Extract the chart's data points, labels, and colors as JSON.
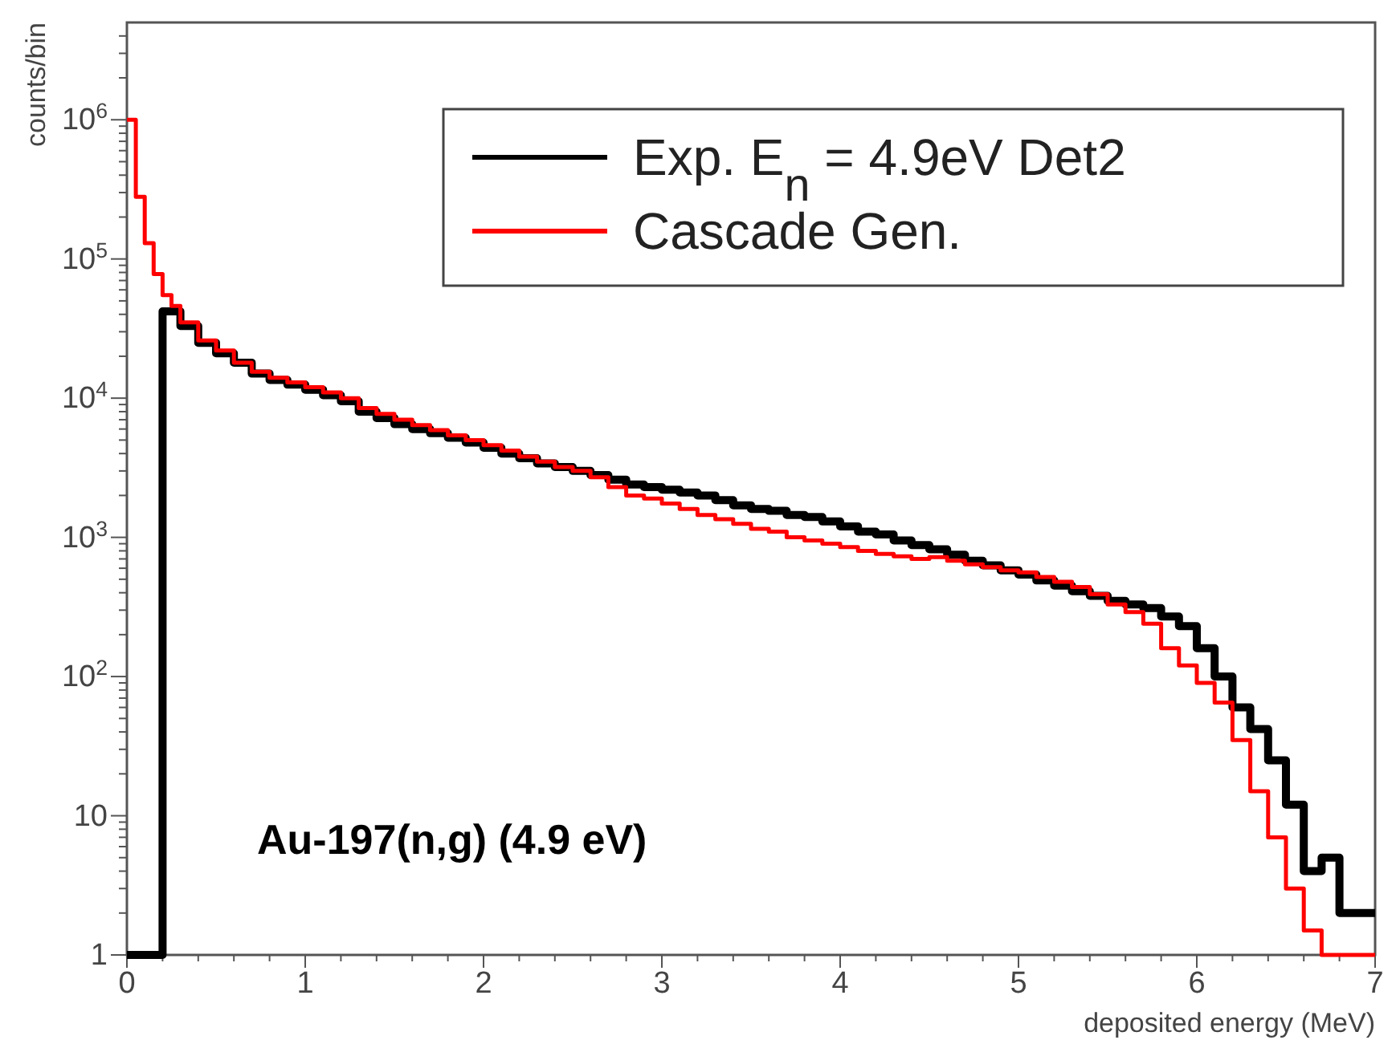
{
  "chart_data": {
    "type": "step",
    "xlabel": "deposited energy (MeV)",
    "ylabel": "counts/bin",
    "annotations": [
      "Au-197(n,g) (4.9 eV)"
    ],
    "log": "y",
    "grid": false,
    "legend": "top right",
    "line_style": "solid",
    "marker": "none",
    "xlim": [
      0,
      7
    ],
    "ylim": [
      1,
      5000000
    ],
    "xticks": [
      0,
      {
        "value": 0.2,
        "label": null
      },
      {
        "value": 0.4,
        "label": null
      },
      {
        "value": 0.6,
        "label": null
      },
      {
        "value": 0.8,
        "label": null
      },
      1,
      {
        "value": 1.2,
        "label": null
      },
      {
        "value": 1.4,
        "label": null
      },
      {
        "value": 1.6,
        "label": null
      },
      {
        "value": 1.8,
        "label": null
      },
      2,
      {
        "value": 2.2,
        "label": null
      },
      {
        "value": 2.4,
        "label": null
      },
      {
        "value": 2.6,
        "label": null
      },
      {
        "value": 2.8,
        "label": null
      },
      3,
      {
        "value": 3.2,
        "label": null
      },
      {
        "value": 3.4,
        "label": null
      },
      {
        "value": 3.6,
        "label": null
      },
      {
        "value": 3.8,
        "label": null
      },
      4,
      {
        "value": 4.2,
        "label": null
      },
      {
        "value": 4.4,
        "label": null
      },
      {
        "value": 4.6,
        "label": null
      },
      {
        "value": 4.8,
        "label": null
      },
      5,
      {
        "value": 5.2,
        "label": null
      },
      {
        "value": 5.4,
        "label": null
      },
      {
        "value": 5.6,
        "label": null
      },
      {
        "value": 5.8,
        "label": null
      },
      6,
      {
        "value": 6.2,
        "label": null
      },
      {
        "value": 6.4,
        "label": null
      },
      {
        "value": 6.6,
        "label": null
      },
      {
        "value": 6.8,
        "label": null
      },
      7
    ],
    "yticks": [
      1,
      {
        "value": 2,
        "label": null
      },
      {
        "value": 3,
        "label": null
      },
      {
        "value": 4,
        "label": null
      },
      {
        "value": 5,
        "label": null
      },
      {
        "value": 6,
        "label": null
      },
      {
        "value": 7,
        "label": null
      },
      {
        "value": 8,
        "label": null
      },
      {
        "value": 9,
        "label": null
      },
      10,
      {
        "value": 20,
        "label": null
      },
      {
        "value": 30,
        "label": null
      },
      {
        "value": 40,
        "label": null
      },
      {
        "value": 50,
        "label": null
      },
      {
        "value": 60,
        "label": null
      },
      {
        "value": 70,
        "label": null
      },
      {
        "value": 80,
        "label": null
      },
      {
        "value": 90,
        "label": null
      },
      {
        "value": 100,
        "label": "10$^{2}$"
      },
      {
        "value": 200,
        "label": null
      },
      {
        "value": 300,
        "label": null
      },
      {
        "value": 400,
        "label": null
      },
      {
        "value": 500,
        "label": null
      },
      {
        "value": 600,
        "label": null
      },
      {
        "value": 700,
        "label": null
      },
      {
        "value": 800,
        "label": null
      },
      {
        "value": 900,
        "label": null
      },
      {
        "value": 1000,
        "label": "10$^{3}$"
      },
      {
        "value": 2000,
        "label": null
      },
      {
        "value": 3000,
        "label": null
      },
      {
        "value": 4000,
        "label": null
      },
      {
        "value": 5000,
        "label": null
      },
      {
        "value": 6000,
        "label": null
      },
      {
        "value": 7000,
        "label": null
      },
      {
        "value": 8000,
        "label": null
      },
      {
        "value": 9000,
        "label": null
      },
      {
        "value": 10000,
        "label": "10$^{4}$"
      },
      {
        "value": 20000,
        "label": null
      },
      {
        "value": 30000,
        "label": null
      },
      {
        "value": 40000,
        "label": null
      },
      {
        "value": 50000,
        "label": null
      },
      {
        "value": 60000,
        "label": null
      },
      {
        "value": 70000,
        "label": null
      },
      {
        "value": 80000,
        "label": null
      },
      {
        "value": 90000,
        "label": null
      },
      {
        "value": 100000,
        "label": "10$^{5}$"
      },
      {
        "value": 200000,
        "label": null
      },
      {
        "value": 300000,
        "label": null
      },
      {
        "value": 400000,
        "label": null
      },
      {
        "value": 500000,
        "label": null
      },
      {
        "value": 600000,
        "label": null
      },
      {
        "value": 700000,
        "label": null
      },
      {
        "value": 800000,
        "label": null
      },
      {
        "value": 900000,
        "label": null
      },
      {
        "value": 1000000,
        "label": "10$^{6}$"
      },
      {
        "value": 2000000,
        "label": null
      },
      {
        "value": 3000000,
        "label": null
      },
      {
        "value": 4000000,
        "label": null
      }
    ],
    "series": [
      {
        "name": "Exp. E$_{n}$ = 4.9eV Det2",
        "color": "#000000",
        "x": [
          0,
          0.2,
          0.3,
          0.4,
          0.5,
          0.6,
          0.7,
          0.8,
          0.9,
          1.0,
          1.1,
          1.2,
          1.3,
          1.4,
          1.5,
          1.6,
          1.7,
          1.8,
          1.9,
          2.0,
          2.1,
          2.2,
          2.3,
          2.4,
          2.5,
          2.6,
          2.7,
          2.8,
          2.9,
          3.0,
          3.1,
          3.2,
          3.3,
          3.4,
          3.5,
          3.6,
          3.7,
          3.8,
          3.9,
          4.0,
          4.1,
          4.2,
          4.3,
          4.4,
          4.5,
          4.6,
          4.7,
          4.8,
          4.9,
          5.0,
          5.1,
          5.2,
          5.3,
          5.4,
          5.5,
          5.6,
          5.7,
          5.8,
          5.9,
          6.0,
          6.1,
          6.2,
          6.3,
          6.4,
          6.5,
          6.6,
          6.7,
          6.8,
          6.9,
          7.0
        ],
        "values": [
          1,
          42000,
          33000,
          25000,
          21000,
          18000,
          15000,
          13500,
          12500,
          11500,
          10500,
          9500,
          8000,
          7200,
          6500,
          6000,
          5600,
          5200,
          4800,
          4400,
          4000,
          3700,
          3400,
          3200,
          3000,
          2800,
          2600,
          2400,
          2300,
          2200,
          2100,
          2000,
          1850,
          1700,
          1600,
          1550,
          1450,
          1400,
          1300,
          1200,
          1100,
          1050,
          950,
          880,
          820,
          750,
          680,
          630,
          580,
          540,
          490,
          450,
          410,
          380,
          350,
          330,
          310,
          270,
          230,
          160,
          100,
          60,
          42,
          25,
          12,
          4,
          5,
          2,
          2,
          2
        ]
      },
      {
        "name": "Cascade Gen.",
        "color": "#ff0000",
        "x": [
          0,
          0.05,
          0.1,
          0.15,
          0.2,
          0.25,
          0.3,
          0.4,
          0.5,
          0.6,
          0.7,
          0.8,
          0.9,
          1.0,
          1.1,
          1.2,
          1.3,
          1.4,
          1.5,
          1.6,
          1.7,
          1.8,
          1.9,
          2.0,
          2.1,
          2.2,
          2.3,
          2.4,
          2.5,
          2.6,
          2.7,
          2.8,
          2.9,
          3.0,
          3.1,
          3.2,
          3.3,
          3.4,
          3.5,
          3.6,
          3.7,
          3.8,
          3.9,
          4.0,
          4.1,
          4.2,
          4.3,
          4.4,
          4.5,
          4.6,
          4.7,
          4.8,
          4.9,
          5.0,
          5.1,
          5.2,
          5.3,
          5.4,
          5.5,
          5.6,
          5.7,
          5.8,
          5.9,
          6.0,
          6.1,
          6.2,
          6.3,
          6.4,
          6.5,
          6.6,
          6.7,
          6.8,
          7.0
        ],
        "values": [
          1000000,
          280000,
          130000,
          78000,
          55000,
          46000,
          35000,
          26000,
          22000,
          18000,
          15500,
          14000,
          13000,
          12000,
          11000,
          10000,
          8500,
          7700,
          7000,
          6400,
          5900,
          5400,
          5000,
          4600,
          4200,
          3800,
          3500,
          3200,
          3000,
          2700,
          2300,
          2000,
          1900,
          1750,
          1600,
          1450,
          1350,
          1250,
          1150,
          1100,
          1000,
          950,
          900,
          850,
          800,
          760,
          730,
          700,
          720,
          680,
          640,
          610,
          580,
          560,
          520,
          480,
          440,
          390,
          330,
          290,
          240,
          160,
          120,
          90,
          65,
          35,
          15,
          7,
          3,
          1.5,
          1,
          1,
          1
        ]
      }
    ]
  }
}
